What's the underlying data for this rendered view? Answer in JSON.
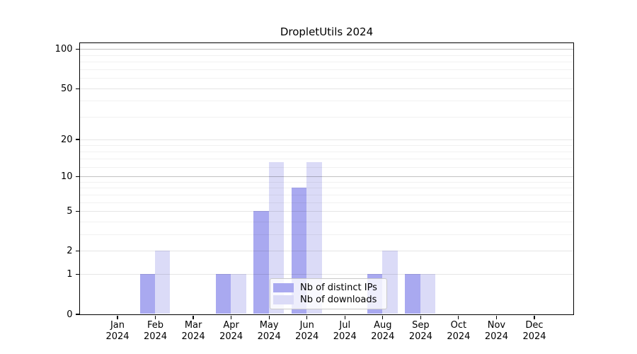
{
  "title": "DropletUtils 2024",
  "colors": {
    "distinct_ips_bar": "#a9a9f0",
    "downloads_bar": "#dbdbf7",
    "grid_decade": "rgba(0,0,0,0.24)",
    "grid_major": "rgba(0,0,0,0.10)",
    "grid_minor": "rgba(0,0,0,0.055)",
    "axis": "#000000"
  },
  "legend": {
    "items": [
      {
        "label": "Nb of distinct IPs",
        "color_key": "distinct_ips_bar"
      },
      {
        "label": "Nb of downloads",
        "color_key": "downloads_bar"
      }
    ]
  },
  "y_axis": {
    "tick_values": [
      0,
      1,
      2,
      5,
      10,
      20,
      50,
      100
    ],
    "tick_labels": [
      "0",
      "1",
      "2",
      "5",
      "10",
      "20",
      "50",
      "100"
    ]
  },
  "x_axis": {
    "months": [
      "Jan",
      "Feb",
      "Mar",
      "Apr",
      "May",
      "Jun",
      "Jul",
      "Aug",
      "Sep",
      "Oct",
      "Nov",
      "Dec"
    ],
    "year": "2024"
  },
  "chart_data": {
    "type": "bar",
    "title": "DropletUtils 2024",
    "categories": [
      "Jan 2024",
      "Feb 2024",
      "Mar 2024",
      "Apr 2024",
      "May 2024",
      "Jun 2024",
      "Jul 2024",
      "Aug 2024",
      "Sep 2024",
      "Oct 2024",
      "Nov 2024",
      "Dec 2024"
    ],
    "series": [
      {
        "name": "Nb of distinct IPs",
        "color": "#a9a9f0",
        "values": [
          0,
          1,
          0,
          1,
          5,
          8,
          0,
          1,
          1,
          0,
          0,
          0
        ]
      },
      {
        "name": "Nb of downloads",
        "color": "#dbdbf7",
        "values": [
          0,
          2,
          0,
          1,
          13,
          13,
          0,
          2,
          1,
          0,
          0,
          0
        ]
      }
    ],
    "xlabel": "",
    "ylabel": "",
    "yscale": "log1p",
    "ylim": [
      0,
      112
    ],
    "yticks_major": [
      1,
      2,
      5,
      10,
      20,
      50,
      100
    ],
    "yticks_decade": [
      10,
      100
    ],
    "yticks_minor": [
      3,
      4,
      6,
      7,
      8,
      9,
      12,
      14,
      16,
      18,
      30,
      40,
      60,
      70,
      80,
      90
    ],
    "grid": true,
    "legend_position": "inside lower center"
  }
}
